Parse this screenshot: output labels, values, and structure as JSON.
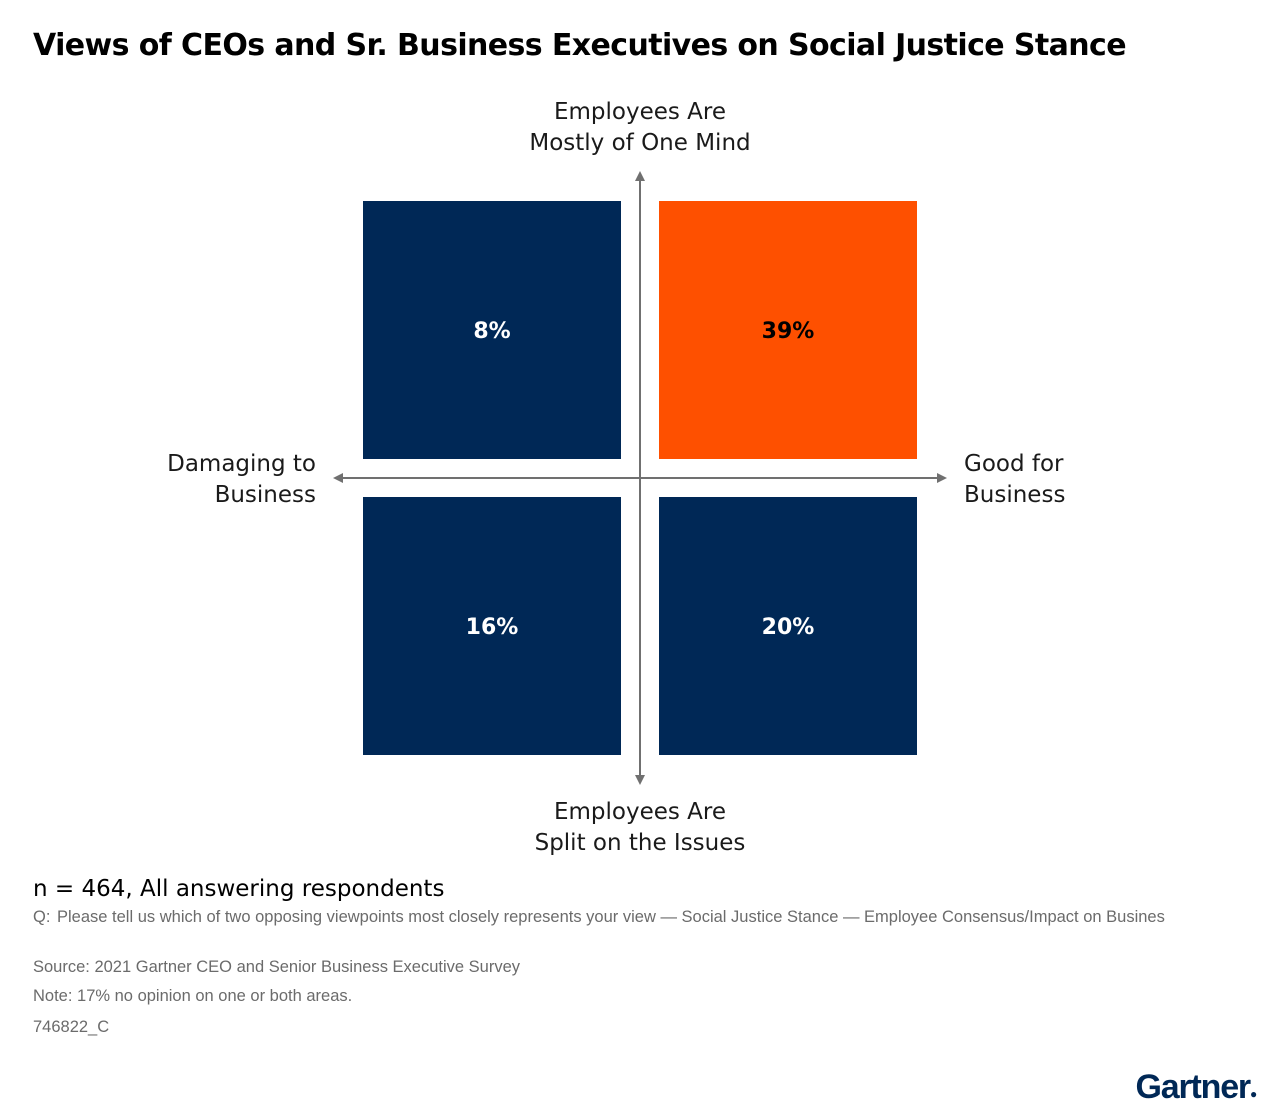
{
  "title": "Views of CEOs and Sr. Business Executives on Social Justice Stance",
  "chart_data": {
    "type": "quadrant",
    "y_axis": {
      "top_label": [
        "Employees Are",
        "Mostly of One Mind"
      ],
      "bottom_label": [
        "Employees Are",
        "Split on the Issues"
      ]
    },
    "x_axis": {
      "left_label": [
        "Damaging to",
        "Business"
      ],
      "right_label": [
        "Good for",
        "Business"
      ]
    },
    "cells": [
      {
        "quadrant": "top-left",
        "value": 8,
        "label": "8%",
        "color": "#002856",
        "text_color": "#ffffff"
      },
      {
        "quadrant": "top-right",
        "value": 39,
        "label": "39%",
        "color": "#fe5000",
        "text_color": "#000000"
      },
      {
        "quadrant": "bottom-left",
        "value": 16,
        "label": "16%",
        "color": "#002856",
        "text_color": "#ffffff"
      },
      {
        "quadrant": "bottom-right",
        "value": 20,
        "label": "20%",
        "color": "#002856",
        "text_color": "#ffffff"
      }
    ],
    "axis_color": "#707070"
  },
  "footer": {
    "n": "n = 464, All answering respondents",
    "q_prefix": "Q:",
    "question": "Please tell us which of two opposing viewpoints most closely represents your view — Social Justice Stance — Employee Consensus/Impact on Busines",
    "source": "Source: 2021 Gartner CEO and Senior Business Executive Survey",
    "note": "Note: 17% no opinion on one or both areas.",
    "code": "746822_C"
  },
  "brand": {
    "logo": "Gartner",
    "color": "#002856"
  }
}
